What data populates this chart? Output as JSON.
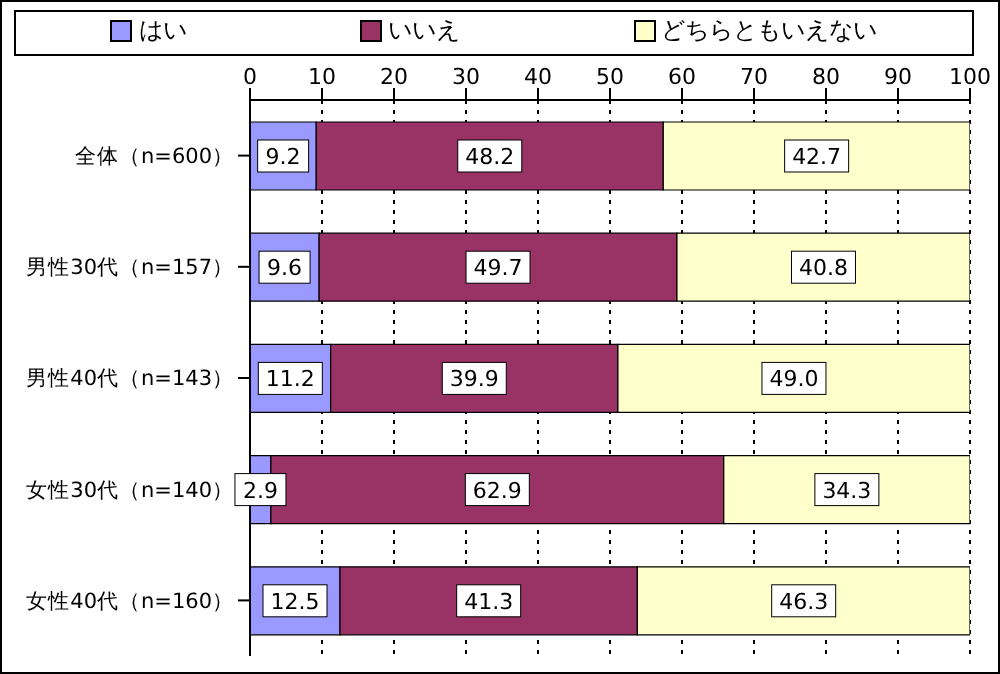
{
  "chart_data": {
    "type": "bar",
    "orientation": "horizontal",
    "stacked": true,
    "categories": [
      "全体（n=600）",
      "男性30代（n=157）",
      "男性40代（n=143）",
      "女性30代（n=140）",
      "女性40代（n=160）"
    ],
    "series": [
      {
        "name": "はい",
        "color": "#9999ff",
        "values": [
          9.2,
          9.6,
          11.2,
          2.9,
          12.5
        ],
        "value_labels": [
          "9.2",
          "9.6",
          "11.2",
          "2.9",
          "12.5"
        ]
      },
      {
        "name": "いいえ",
        "color": "#993366",
        "values": [
          48.2,
          49.7,
          39.9,
          62.9,
          41.3
        ],
        "value_labels": [
          "48.2",
          "49.7",
          "39.9",
          "62.9",
          "41.3"
        ]
      },
      {
        "name": "どちらともいえない",
        "color": "#ffffcc",
        "values": [
          42.7,
          40.8,
          49.0,
          34.3,
          46.3
        ],
        "value_labels": [
          "42.7",
          "40.8",
          "49.0",
          "34.3",
          "46.3"
        ]
      }
    ],
    "xlim": [
      0,
      100
    ],
    "xticks": [
      0,
      10,
      20,
      30,
      40,
      50,
      60,
      70,
      80,
      90,
      100
    ],
    "grid": "x",
    "legend": "top"
  }
}
